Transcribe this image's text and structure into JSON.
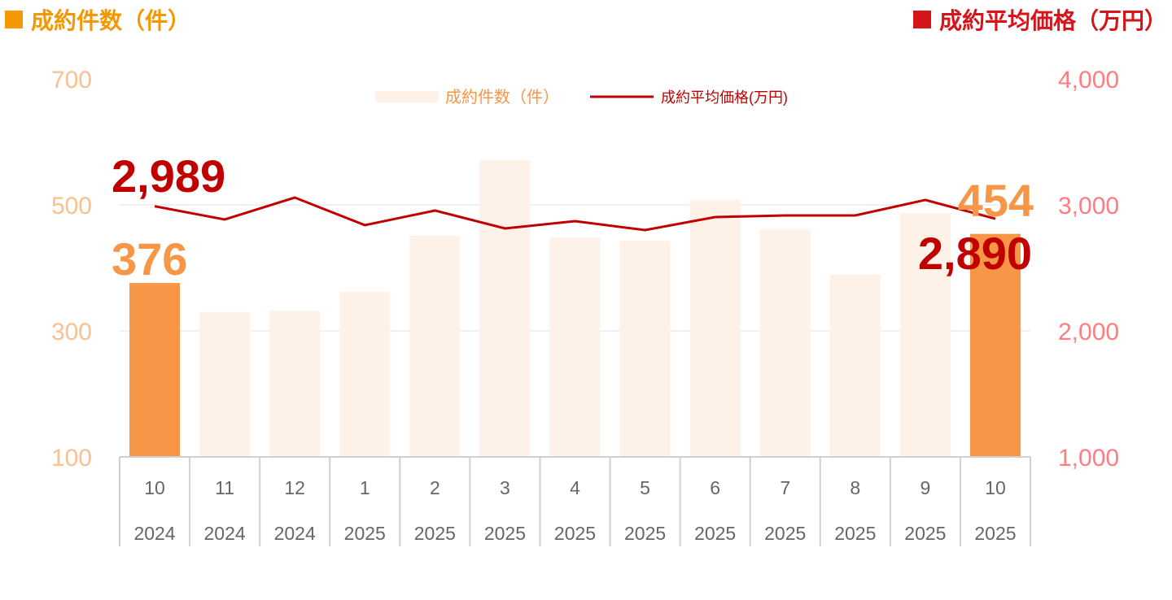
{
  "header": {
    "left_title": "成約件数（件）",
    "right_title": "成約平均価格（万円）"
  },
  "chart_data": {
    "type": "bar+line",
    "categories": [
      {
        "month": "10",
        "year": "2024"
      },
      {
        "month": "11",
        "year": "2024"
      },
      {
        "month": "12",
        "year": "2024"
      },
      {
        "month": "1",
        "year": "2025"
      },
      {
        "month": "2",
        "year": "2025"
      },
      {
        "month": "3",
        "year": "2025"
      },
      {
        "month": "4",
        "year": "2025"
      },
      {
        "month": "5",
        "year": "2025"
      },
      {
        "month": "6",
        "year": "2025"
      },
      {
        "month": "7",
        "year": "2025"
      },
      {
        "month": "8",
        "year": "2025"
      },
      {
        "month": "9",
        "year": "2025"
      },
      {
        "month": "10",
        "year": "2025"
      }
    ],
    "series": [
      {
        "name": "成約件数（件）",
        "type": "bar",
        "axis": "left",
        "color": "#FDF1E8",
        "highlight_color": "#F79646",
        "highlight_indices": [
          0,
          12
        ],
        "values": [
          376,
          330,
          332,
          362,
          451,
          571,
          448,
          443,
          508,
          461,
          389,
          487,
          454
        ]
      },
      {
        "name": "成約平均価格(万円)",
        "type": "line",
        "axis": "right",
        "color": "#C00000",
        "values": [
          2989,
          2884,
          3058,
          2839,
          2955,
          2813,
          2871,
          2800,
          2903,
          2916,
          2916,
          3039,
          2890
        ]
      }
    ],
    "left_axis": {
      "range": [
        100,
        700
      ],
      "ticks": [
        "100",
        "300",
        "500",
        "700"
      ],
      "color": "#FAC090"
    },
    "right_axis": {
      "range": [
        1000,
        4000
      ],
      "ticks": [
        "1,000",
        "2,000",
        "3,000",
        "4,000"
      ],
      "color": "#FF7C80"
    },
    "data_labels": [
      {
        "text": "2,989",
        "series": 1,
        "index": 0,
        "color": "#C00000"
      },
      {
        "text": "376",
        "series": 0,
        "index": 0,
        "color": "#F79646"
      },
      {
        "text": "454",
        "series": 0,
        "index": 12,
        "color": "#F79646"
      },
      {
        "text": "2,890",
        "series": 1,
        "index": 12,
        "color": "#C00000"
      }
    ],
    "legend": {
      "placement": "top-center"
    },
    "grid": true
  }
}
